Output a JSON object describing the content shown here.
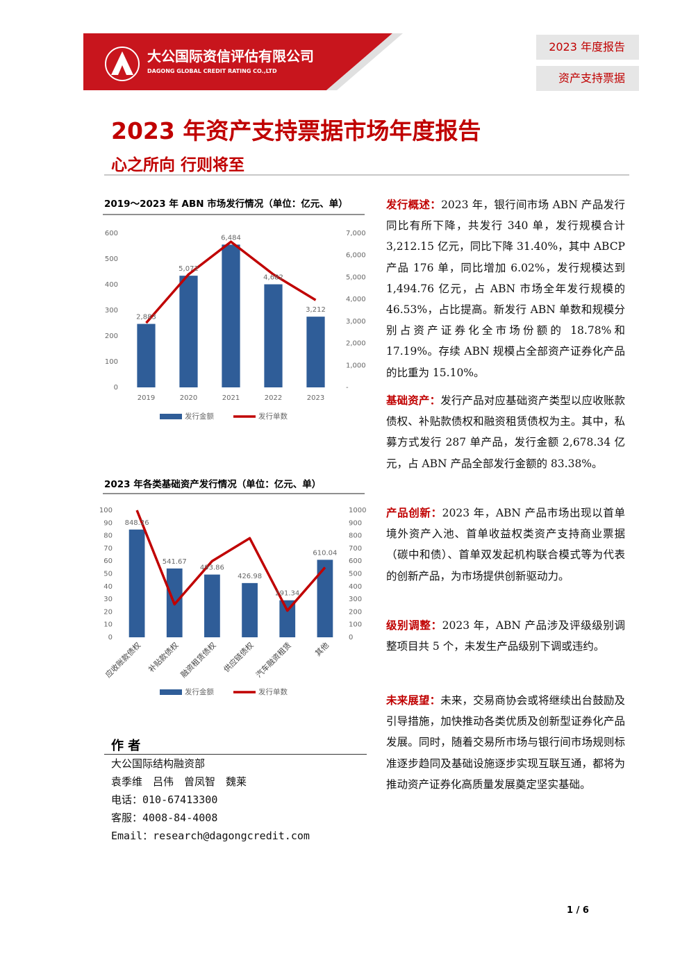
{
  "header": {
    "company_cn": "大公国际资信评估有限公司",
    "company_en": "DAGONG GLOBAL CREDIT RATING CO.,LTD",
    "tag_year": "2023 年度报告",
    "tag_topic": "资产支持票据"
  },
  "title": "2023 年资产支持票据市场年度报告",
  "subtitle": "心之所向 行则将至",
  "chart_data": [
    {
      "type": "bar-line",
      "title": "2019～2023 年 ABN 市场发行情况（单位：亿元、单）",
      "categories": [
        "2019",
        "2020",
        "2021",
        "2022",
        "2023"
      ],
      "series": [
        {
          "name": "发行金额",
          "type": "bar",
          "axis": "y2",
          "color": "#2f5d98",
          "values": [
            2883,
            5072,
            6484,
            4682,
            3212
          ],
          "value_labels": [
            "2,883",
            "5,072",
            "6,484",
            "4,682",
            "3,212"
          ]
        },
        {
          "name": "发行单数",
          "type": "line",
          "color": "#c00000",
          "values": [
            251,
            440,
            567,
            440,
            340
          ]
        }
      ],
      "ylim": [
        0,
        600
      ],
      "yticks": [
        0,
        100,
        200,
        300,
        400,
        500,
        600
      ],
      "y2lim": [
        0,
        7000
      ],
      "y2ticks": [
        {
          "value": 0,
          "label": "-"
        },
        {
          "value": 1000,
          "label": "1,000"
        },
        {
          "value": 2000,
          "label": "2,000"
        },
        {
          "value": 3000,
          "label": "3,000"
        },
        {
          "value": 4000,
          "label": "4,000"
        },
        {
          "value": 5000,
          "label": "5,000"
        },
        {
          "value": 6000,
          "label": "6,000"
        },
        {
          "value": 7000,
          "label": "7,000"
        }
      ],
      "legend": "bottom"
    },
    {
      "type": "bar-line",
      "title": "2023 年各类基础资产发行情况（单位：亿元、单）",
      "categories": [
        "应收账款债权",
        "补贴款债权",
        "融资租赁债权",
        "供应链债权",
        "汽车融资租赁",
        "其他"
      ],
      "series": [
        {
          "name": "发行金额",
          "type": "bar",
          "axis": "y2",
          "color": "#2f5d98",
          "values": [
            848.26,
            541.67,
            493.86,
            426.98,
            291.34,
            610.04
          ]
        },
        {
          "name": "发行单数",
          "type": "line",
          "color": "#c00000",
          "values": [
            100,
            26,
            60,
            78,
            21,
            55
          ]
        }
      ],
      "ylim": [
        0,
        100
      ],
      "yticks": [
        0,
        10,
        20,
        30,
        40,
        50,
        60,
        70,
        80,
        90,
        100
      ],
      "y2lim": [
        0,
        1000
      ],
      "y2ticks": [
        0,
        100,
        200,
        300,
        400,
        500,
        600,
        700,
        800,
        900,
        1000
      ],
      "legend": "bottom"
    }
  ],
  "paragraphs": [
    {
      "label": "发行概述：",
      "text": "2023 年，银行间市场 ABN 产品发行同比有所下降，共发行 340 单，发行规模合计 3,212.15 亿元，同比下降 31.40%，其中 ABCP 产品 176 单，同比增加 6.02%，发行规模达到 1,494.76 亿元，占 ABN 市场全年发行规模的 46.53%，占比提高。新发行 ABN 单数和规模分别占资产证券化全市场份额的 18.78%和 17.19%。存续 ABN 规模占全部资产证券化产品的比重为 15.10%。"
    },
    {
      "label": "基础资产：",
      "text": "发行产品对应基础资产类型以应收账款债权、补贴款债权和融资租赁债权为主。其中，私募方式发行 287 单产品，发行金额 2,678.34 亿元，占 ABN 产品全部发行金额的 83.38%。"
    },
    {
      "label": "产品创新：",
      "text": "2023 年，ABN 产品市场出现以首单境外资产入池、首单收益权类资产支持商业票据（碳中和债）、首单双发起机构联合模式等为代表的创新产品，为市场提供创新驱动力。"
    },
    {
      "label": "级别调整：",
      "text": "2023 年，ABN 产品涉及评级级别调整项目共 5 个，未发生产品级别下调或违约。"
    },
    {
      "label": "未来展望：",
      "text": "未来，交易商协会或将继续出台鼓励及引导措施，加快推动各类优质及创新型证券化产品发展。同时，随着交易所市场与银行间市场规则标准逐步趋同及基础设施逐步实现互联互通，都将为推动资产证券化高质量发展奠定坚实基础。"
    }
  ],
  "author": {
    "heading": "作 者",
    "lines": [
      "大公国际结构融资部",
      "袁季维　吕伟　曾凤智　魏莱",
      "电话：010-67413300",
      "客服：4008-84-4008",
      "Email：research@dagongcredit.com"
    ]
  },
  "footer": {
    "page": "1 / 6"
  }
}
